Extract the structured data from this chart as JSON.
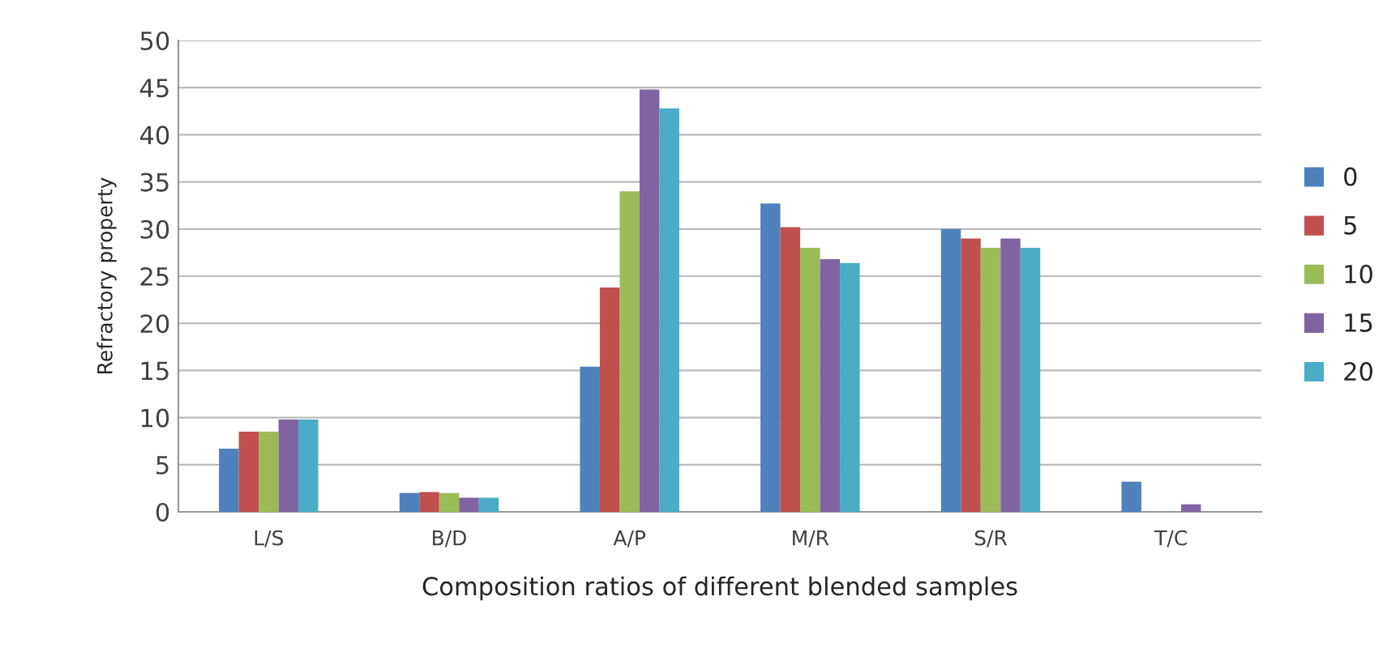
{
  "chart_data": {
    "type": "bar",
    "xlabel": "Composition ratios of different blended samples",
    "ylabel": "Refractory property",
    "categories": [
      "L/S",
      "B/D",
      "A/P",
      "M/R",
      "S/R",
      "T/C"
    ],
    "series": [
      {
        "name": "0",
        "color": "#4f81bd",
        "values": [
          6.7,
          2.0,
          15.4,
          32.7,
          30.0,
          3.2
        ]
      },
      {
        "name": "5",
        "color": "#c0504d",
        "values": [
          8.5,
          2.1,
          23.8,
          30.2,
          29.0,
          null
        ]
      },
      {
        "name": "10",
        "color": "#9bbb59",
        "values": [
          8.5,
          2.0,
          34.0,
          28.0,
          28.0,
          null
        ]
      },
      {
        "name": "15",
        "color": "#8064a2",
        "values": [
          9.8,
          1.5,
          44.8,
          26.8,
          29.0,
          0.8
        ]
      },
      {
        "name": "20",
        "color": "#4bacc6",
        "values": [
          9.8,
          1.5,
          42.8,
          26.4,
          28.0,
          null
        ]
      }
    ],
    "ylim": [
      0,
      50
    ],
    "yticks": [
      0,
      5,
      10,
      15,
      20,
      25,
      30,
      35,
      40,
      45,
      50
    ],
    "grid": "y",
    "legend": "right"
  }
}
